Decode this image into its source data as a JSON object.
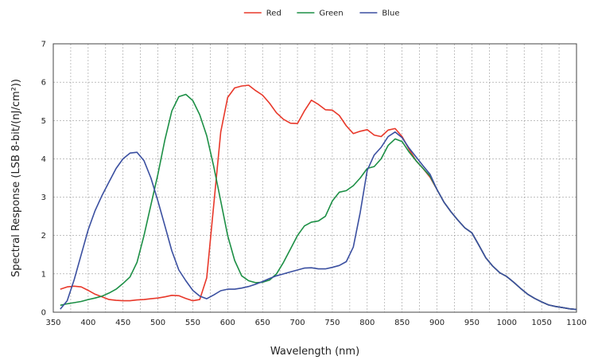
{
  "chart_data": {
    "type": "line",
    "title": "",
    "xlabel": "Wavelength (nm)",
    "ylabel": "Spectral Response (LSB 8-bit/(nJ/cm²))",
    "xlim": [
      350,
      1100
    ],
    "ylim": [
      0,
      7
    ],
    "x_ticks": [
      350,
      400,
      450,
      500,
      550,
      600,
      650,
      700,
      750,
      800,
      850,
      900,
      950,
      1000,
      1050,
      1100
    ],
    "y_ticks": [
      0,
      1,
      2,
      3,
      4,
      5,
      6,
      7
    ],
    "minor_x_step": 25,
    "grid": true,
    "legend_position": "top-center",
    "series": [
      {
        "name": "Red",
        "color": "#e8382a",
        "points": [
          [
            360,
            0.6
          ],
          [
            370,
            0.66
          ],
          [
            380,
            0.68
          ],
          [
            390,
            0.66
          ],
          [
            400,
            0.57
          ],
          [
            410,
            0.47
          ],
          [
            420,
            0.4
          ],
          [
            430,
            0.33
          ],
          [
            440,
            0.31
          ],
          [
            450,
            0.3
          ],
          [
            460,
            0.3
          ],
          [
            470,
            0.32
          ],
          [
            480,
            0.33
          ],
          [
            490,
            0.35
          ],
          [
            500,
            0.37
          ],
          [
            510,
            0.4
          ],
          [
            520,
            0.44
          ],
          [
            530,
            0.43
          ],
          [
            540,
            0.36
          ],
          [
            550,
            0.3
          ],
          [
            560,
            0.33
          ],
          [
            570,
            0.9
          ],
          [
            580,
            2.8
          ],
          [
            590,
            4.7
          ],
          [
            600,
            5.6
          ],
          [
            610,
            5.85
          ],
          [
            620,
            5.9
          ],
          [
            630,
            5.92
          ],
          [
            640,
            5.78
          ],
          [
            650,
            5.66
          ],
          [
            660,
            5.45
          ],
          [
            670,
            5.2
          ],
          [
            680,
            5.03
          ],
          [
            690,
            4.93
          ],
          [
            700,
            4.92
          ],
          [
            710,
            5.25
          ],
          [
            720,
            5.53
          ],
          [
            730,
            5.42
          ],
          [
            740,
            5.28
          ],
          [
            750,
            5.27
          ],
          [
            760,
            5.13
          ],
          [
            770,
            4.86
          ],
          [
            780,
            4.66
          ],
          [
            790,
            4.72
          ],
          [
            800,
            4.76
          ],
          [
            810,
            4.62
          ],
          [
            820,
            4.58
          ],
          [
            830,
            4.75
          ],
          [
            840,
            4.79
          ],
          [
            850,
            4.58
          ],
          [
            860,
            4.25
          ],
          [
            870,
            3.95
          ],
          [
            880,
            3.75
          ],
          [
            890,
            3.52
          ],
          [
            900,
            3.2
          ],
          [
            910,
            2.87
          ],
          [
            920,
            2.62
          ],
          [
            930,
            2.4
          ],
          [
            940,
            2.2
          ],
          [
            950,
            2.07
          ],
          [
            960,
            1.75
          ],
          [
            970,
            1.42
          ],
          [
            980,
            1.2
          ],
          [
            990,
            1.03
          ],
          [
            1000,
            0.93
          ],
          [
            1010,
            0.78
          ],
          [
            1020,
            0.62
          ],
          [
            1030,
            0.47
          ],
          [
            1040,
            0.36
          ],
          [
            1050,
            0.27
          ],
          [
            1060,
            0.19
          ],
          [
            1070,
            0.15
          ],
          [
            1080,
            0.12
          ],
          [
            1090,
            0.09
          ],
          [
            1100,
            0.07
          ]
        ]
      },
      {
        "name": "Green",
        "color": "#1c8f45",
        "points": [
          [
            360,
            0.18
          ],
          [
            370,
            0.22
          ],
          [
            380,
            0.25
          ],
          [
            390,
            0.28
          ],
          [
            400,
            0.33
          ],
          [
            410,
            0.37
          ],
          [
            420,
            0.42
          ],
          [
            430,
            0.5
          ],
          [
            440,
            0.6
          ],
          [
            450,
            0.75
          ],
          [
            460,
            0.92
          ],
          [
            470,
            1.3
          ],
          [
            480,
            2.0
          ],
          [
            490,
            2.8
          ],
          [
            500,
            3.6
          ],
          [
            510,
            4.5
          ],
          [
            520,
            5.25
          ],
          [
            530,
            5.62
          ],
          [
            540,
            5.68
          ],
          [
            550,
            5.52
          ],
          [
            560,
            5.15
          ],
          [
            570,
            4.6
          ],
          [
            580,
            3.8
          ],
          [
            590,
            2.9
          ],
          [
            600,
            2.0
          ],
          [
            610,
            1.35
          ],
          [
            620,
            0.95
          ],
          [
            630,
            0.82
          ],
          [
            640,
            0.77
          ],
          [
            650,
            0.78
          ],
          [
            660,
            0.84
          ],
          [
            670,
            1.0
          ],
          [
            680,
            1.3
          ],
          [
            690,
            1.65
          ],
          [
            700,
            2.0
          ],
          [
            710,
            2.25
          ],
          [
            720,
            2.35
          ],
          [
            730,
            2.38
          ],
          [
            740,
            2.5
          ],
          [
            750,
            2.9
          ],
          [
            760,
            3.13
          ],
          [
            770,
            3.17
          ],
          [
            780,
            3.3
          ],
          [
            790,
            3.5
          ],
          [
            800,
            3.75
          ],
          [
            810,
            3.8
          ],
          [
            820,
            4.0
          ],
          [
            830,
            4.35
          ],
          [
            840,
            4.52
          ],
          [
            850,
            4.45
          ],
          [
            860,
            4.18
          ],
          [
            870,
            3.95
          ],
          [
            880,
            3.75
          ],
          [
            890,
            3.55
          ],
          [
            900,
            3.2
          ],
          [
            910,
            2.87
          ],
          [
            920,
            2.62
          ],
          [
            930,
            2.4
          ],
          [
            940,
            2.2
          ],
          [
            950,
            2.07
          ],
          [
            960,
            1.75
          ],
          [
            970,
            1.42
          ],
          [
            980,
            1.2
          ],
          [
            990,
            1.03
          ],
          [
            1000,
            0.93
          ],
          [
            1010,
            0.78
          ],
          [
            1020,
            0.62
          ],
          [
            1030,
            0.47
          ],
          [
            1040,
            0.36
          ],
          [
            1050,
            0.27
          ],
          [
            1060,
            0.19
          ],
          [
            1070,
            0.15
          ],
          [
            1080,
            0.12
          ],
          [
            1090,
            0.09
          ],
          [
            1100,
            0.07
          ]
        ]
      },
      {
        "name": "Blue",
        "color": "#3a4fa0",
        "points": [
          [
            360,
            0.08
          ],
          [
            370,
            0.3
          ],
          [
            380,
            0.85
          ],
          [
            390,
            1.5
          ],
          [
            400,
            2.15
          ],
          [
            410,
            2.65
          ],
          [
            420,
            3.05
          ],
          [
            430,
            3.4
          ],
          [
            440,
            3.75
          ],
          [
            450,
            4.0
          ],
          [
            460,
            4.15
          ],
          [
            470,
            4.17
          ],
          [
            480,
            3.95
          ],
          [
            490,
            3.5
          ],
          [
            500,
            2.9
          ],
          [
            510,
            2.25
          ],
          [
            520,
            1.6
          ],
          [
            530,
            1.1
          ],
          [
            540,
            0.82
          ],
          [
            550,
            0.57
          ],
          [
            560,
            0.42
          ],
          [
            570,
            0.35
          ],
          [
            580,
            0.45
          ],
          [
            590,
            0.56
          ],
          [
            600,
            0.6
          ],
          [
            610,
            0.6
          ],
          [
            620,
            0.63
          ],
          [
            630,
            0.67
          ],
          [
            640,
            0.73
          ],
          [
            650,
            0.8
          ],
          [
            660,
            0.88
          ],
          [
            670,
            0.95
          ],
          [
            680,
            1.0
          ],
          [
            690,
            1.05
          ],
          [
            700,
            1.1
          ],
          [
            710,
            1.15
          ],
          [
            720,
            1.16
          ],
          [
            730,
            1.13
          ],
          [
            740,
            1.13
          ],
          [
            750,
            1.17
          ],
          [
            760,
            1.22
          ],
          [
            770,
            1.32
          ],
          [
            780,
            1.7
          ],
          [
            790,
            2.6
          ],
          [
            800,
            3.7
          ],
          [
            810,
            4.1
          ],
          [
            820,
            4.3
          ],
          [
            830,
            4.58
          ],
          [
            840,
            4.7
          ],
          [
            850,
            4.55
          ],
          [
            860,
            4.28
          ],
          [
            870,
            4.05
          ],
          [
            880,
            3.82
          ],
          [
            890,
            3.6
          ],
          [
            900,
            3.2
          ],
          [
            910,
            2.87
          ],
          [
            920,
            2.62
          ],
          [
            930,
            2.4
          ],
          [
            940,
            2.2
          ],
          [
            950,
            2.07
          ],
          [
            960,
            1.75
          ],
          [
            970,
            1.42
          ],
          [
            980,
            1.2
          ],
          [
            990,
            1.03
          ],
          [
            1000,
            0.93
          ],
          [
            1010,
            0.78
          ],
          [
            1020,
            0.62
          ],
          [
            1030,
            0.47
          ],
          [
            1040,
            0.36
          ],
          [
            1050,
            0.27
          ],
          [
            1060,
            0.19
          ],
          [
            1070,
            0.15
          ],
          [
            1080,
            0.12
          ],
          [
            1090,
            0.09
          ],
          [
            1100,
            0.07
          ]
        ]
      }
    ]
  }
}
